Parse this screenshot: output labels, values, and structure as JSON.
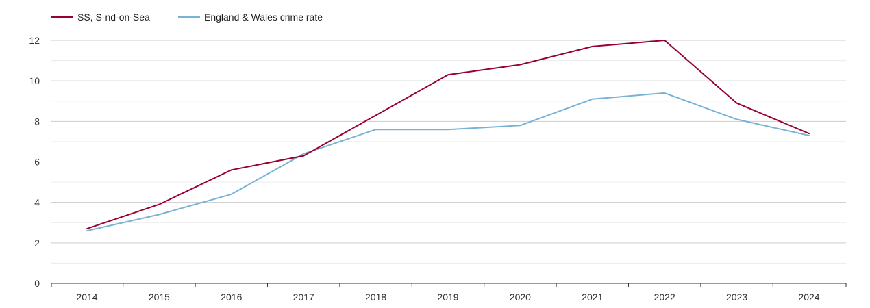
{
  "chart_data": {
    "type": "line",
    "title": "",
    "xlabel": "",
    "ylabel": "",
    "x": [
      "2014",
      "2015",
      "2016",
      "2017",
      "2018",
      "2019",
      "2020",
      "2021",
      "2022",
      "2023",
      "2024"
    ],
    "ylim": [
      0,
      12
    ],
    "yticks": [
      "0",
      "2",
      "4",
      "6",
      "8",
      "10",
      "12"
    ],
    "grid": true,
    "legend_position": "top-left",
    "series": [
      {
        "name": "SS, S-nd-on-Sea",
        "color": "#990033",
        "values": [
          2.7,
          3.9,
          5.6,
          6.3,
          8.3,
          10.3,
          10.8,
          11.7,
          12.0,
          8.9,
          7.4
        ]
      },
      {
        "name": "England & Wales crime rate",
        "color": "#77b3d4",
        "values": [
          2.6,
          3.4,
          4.4,
          6.4,
          7.6,
          7.6,
          7.8,
          9.1,
          9.4,
          8.1,
          7.3
        ]
      }
    ]
  }
}
